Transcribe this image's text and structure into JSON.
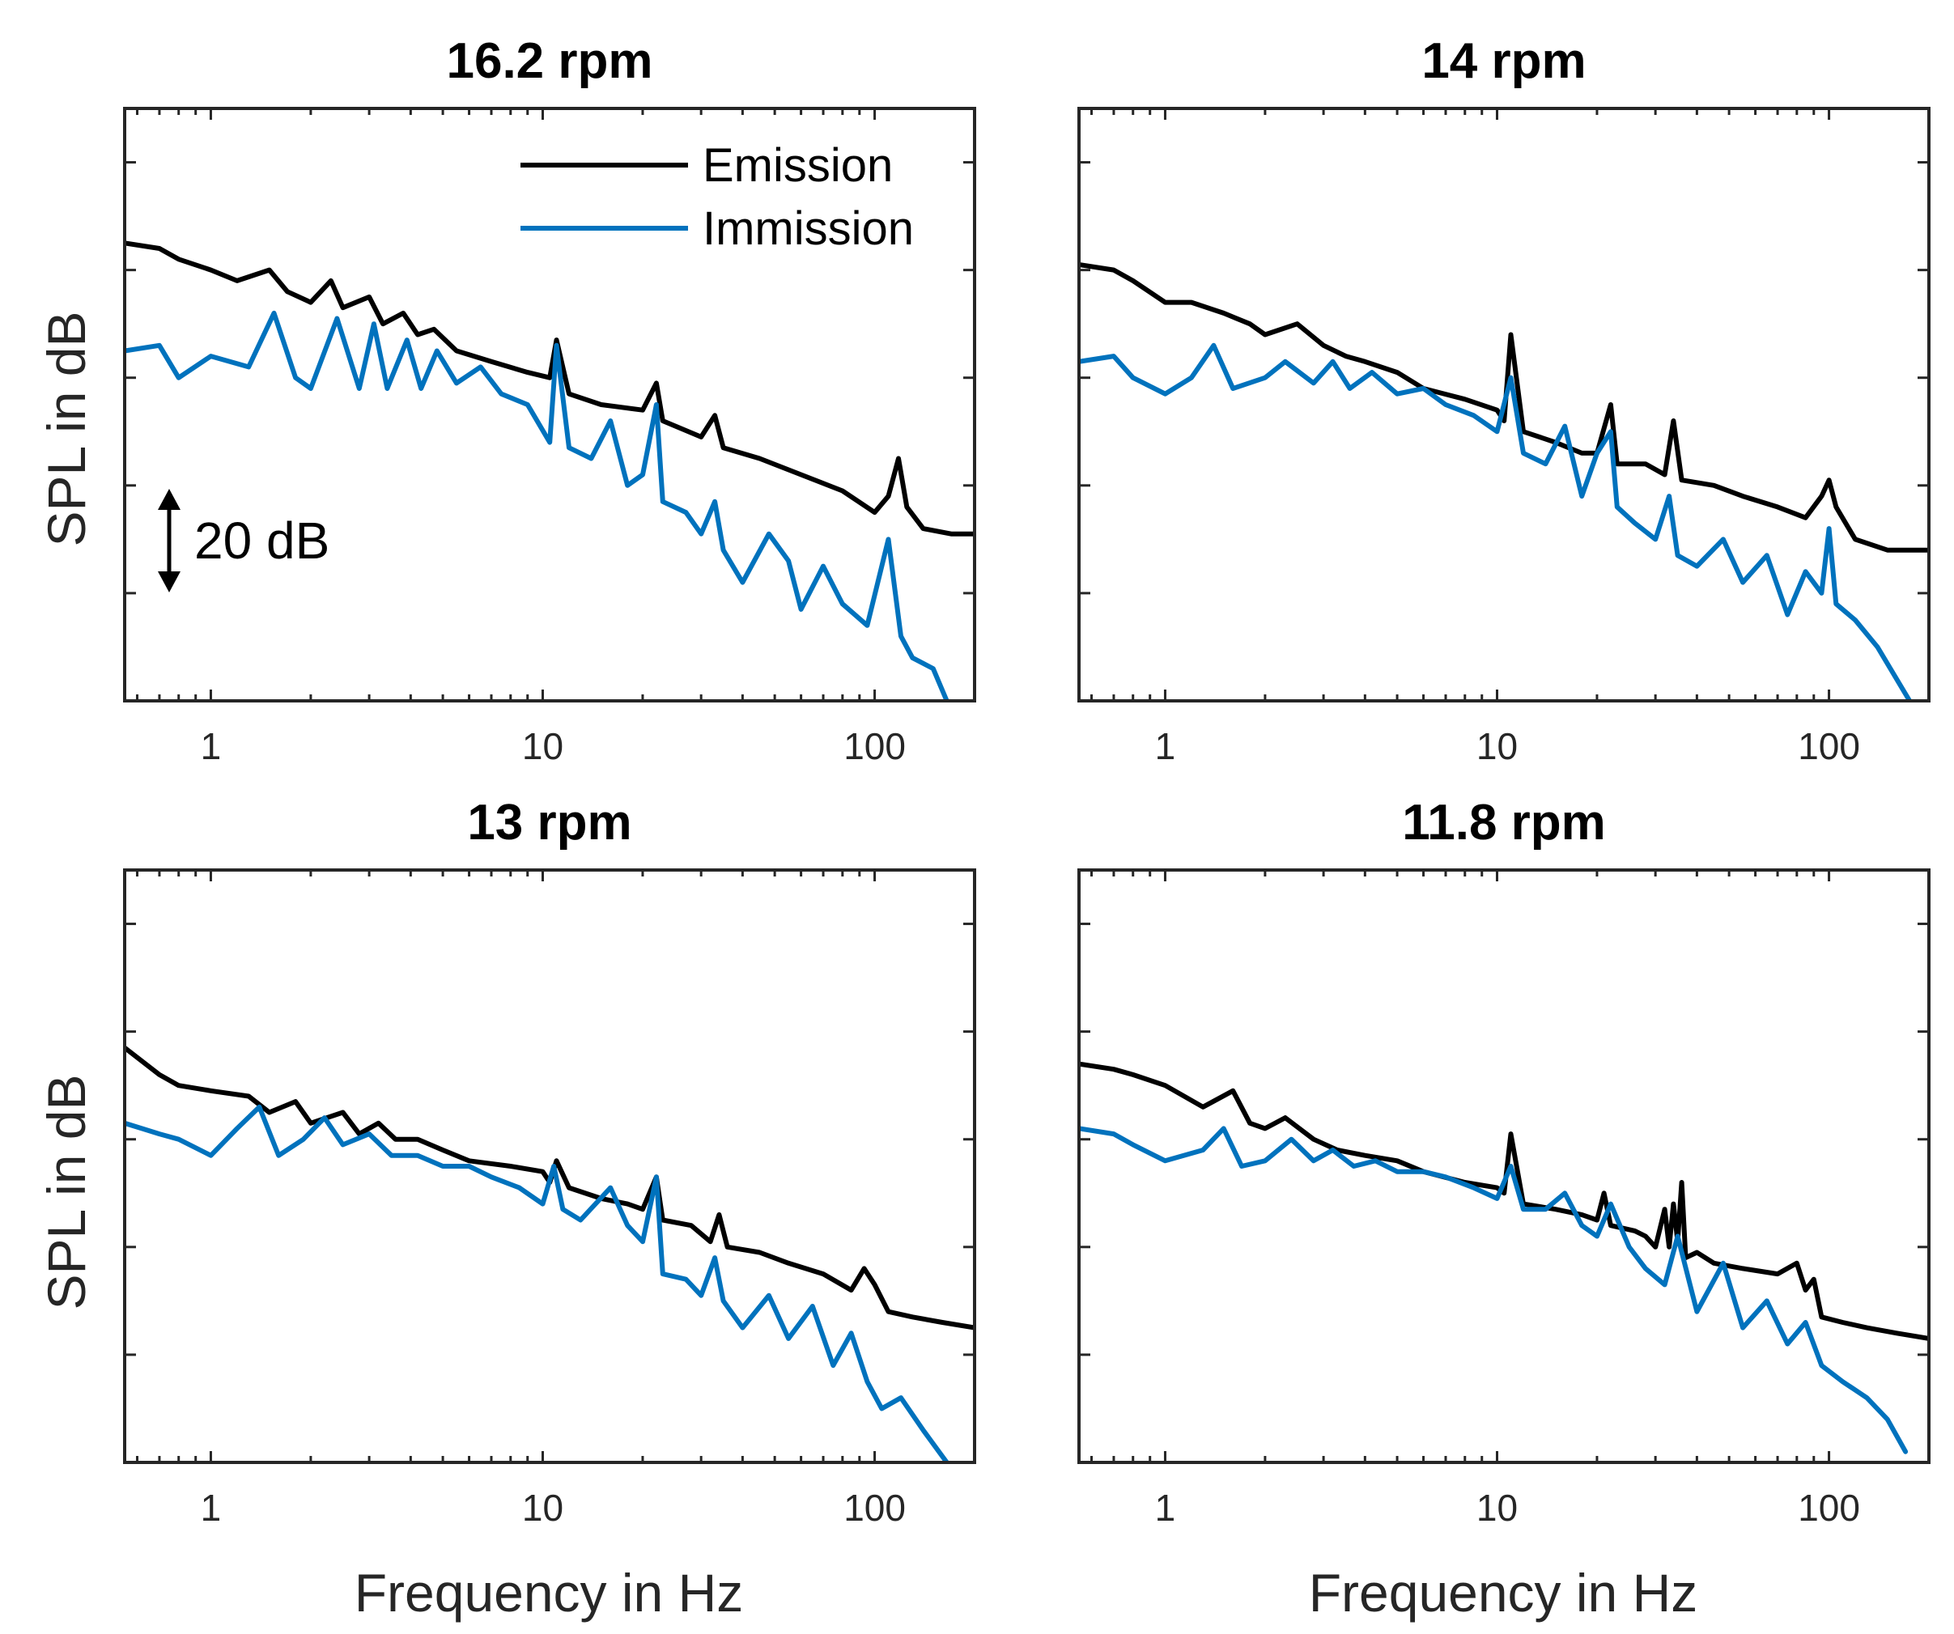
{
  "figure": {
    "ylabel": "SPL in dB",
    "xlabel": "Frequency in Hz",
    "legend": [
      {
        "label": "Emission",
        "color": "#000000"
      },
      {
        "label": "Immission",
        "color": "#0072BD"
      }
    ],
    "scale_bar_label": "20 dB"
  },
  "chart_data": [
    {
      "type": "line",
      "title": "16.2 rpm",
      "xscale": "log",
      "xlim": [
        0.55,
        200
      ],
      "ylim": [
        0,
        110
      ],
      "xticks": [
        1,
        10,
        100
      ],
      "xtick_labels": [
        "1",
        "10",
        "100"
      ],
      "series": [
        {
          "name": "Emission",
          "color": "#000000",
          "x": [
            0.55,
            0.7,
            0.8,
            1.0,
            1.2,
            1.5,
            1.7,
            2.0,
            2.3,
            2.5,
            3.0,
            3.3,
            3.8,
            4.2,
            4.7,
            5.5,
            7,
            9,
            10.5,
            11,
            12,
            15,
            20,
            22,
            23,
            30,
            33,
            35,
            45,
            60,
            80,
            100,
            110,
            118,
            125,
            140,
            170,
            200
          ],
          "y": [
            85,
            84,
            82,
            80,
            78,
            80,
            76,
            74,
            78,
            73,
            75,
            70,
            72,
            68,
            69,
            65,
            63,
            61,
            60,
            67,
            57,
            55,
            54,
            59,
            52,
            49,
            53,
            47,
            45,
            42,
            39,
            35,
            38,
            45,
            36,
            32,
            31,
            31
          ]
        },
        {
          "name": "Immission",
          "color": "#0072BD",
          "x": [
            0.55,
            0.7,
            0.8,
            1.0,
            1.3,
            1.55,
            1.8,
            2.0,
            2.4,
            2.8,
            3.1,
            3.4,
            3.9,
            4.3,
            4.8,
            5.5,
            6.5,
            7.5,
            9,
            10.5,
            11,
            12,
            14,
            16,
            18,
            20,
            22,
            23,
            27,
            30,
            33,
            35,
            40,
            48,
            55,
            60,
            70,
            80,
            95,
            110,
            120,
            130,
            150,
            165
          ],
          "y": [
            65,
            66,
            60,
            64,
            62,
            72,
            60,
            58,
            71,
            58,
            70,
            58,
            67,
            58,
            65,
            59,
            62,
            57,
            55,
            48,
            66,
            47,
            45,
            52,
            40,
            42,
            55,
            37,
            35,
            31,
            37,
            28,
            22,
            31,
            26,
            17,
            25,
            18,
            14,
            30,
            12,
            8,
            6,
            0
          ]
        }
      ]
    },
    {
      "type": "line",
      "title": "14 rpm",
      "xscale": "log",
      "xlim": [
        0.55,
        200
      ],
      "ylim": [
        0,
        110
      ],
      "xticks": [
        1,
        10,
        100
      ],
      "xtick_labels": [
        "1",
        "10",
        "100"
      ],
      "series": [
        {
          "name": "Emission",
          "color": "#000000",
          "x": [
            0.55,
            0.7,
            0.8,
            1.0,
            1.2,
            1.5,
            1.8,
            2.0,
            2.5,
            3.0,
            3.5,
            4,
            5,
            6,
            8,
            10,
            10.5,
            11,
            12,
            15,
            18,
            20,
            22,
            23,
            28,
            32,
            34,
            36,
            45,
            55,
            70,
            85,
            95,
            100,
            105,
            120,
            150,
            200
          ],
          "y": [
            81,
            80,
            78,
            74,
            74,
            72,
            70,
            68,
            70,
            66,
            64,
            63,
            61,
            58,
            56,
            54,
            52,
            68,
            50,
            48,
            46,
            46,
            55,
            44,
            44,
            42,
            52,
            41,
            40,
            38,
            36,
            34,
            38,
            41,
            36,
            30,
            28,
            28
          ]
        },
        {
          "name": "Immission",
          "color": "#0072BD",
          "x": [
            0.55,
            0.7,
            0.8,
            1.0,
            1.2,
            1.4,
            1.6,
            2.0,
            2.3,
            2.8,
            3.2,
            3.6,
            4.2,
            5,
            6,
            7,
            8.5,
            10,
            11,
            12,
            14,
            16,
            18,
            20,
            22,
            23,
            26,
            30,
            33,
            35,
            40,
            48,
            55,
            65,
            75,
            85,
            95,
            100,
            105,
            120,
            140,
            175
          ],
          "y": [
            63,
            64,
            60,
            57,
            60,
            66,
            58,
            60,
            63,
            59,
            63,
            58,
            61,
            57,
            58,
            55,
            53,
            50,
            60,
            46,
            44,
            51,
            38,
            46,
            50,
            36,
            33,
            30,
            38,
            27,
            25,
            30,
            22,
            27,
            16,
            24,
            20,
            32,
            18,
            15,
            10,
            0
          ]
        }
      ]
    },
    {
      "type": "line",
      "title": "13 rpm",
      "xscale": "log",
      "xlim": [
        0.55,
        200
      ],
      "ylim": [
        0,
        110
      ],
      "xticks": [
        1,
        10,
        100
      ],
      "xtick_labels": [
        "1",
        "10",
        "100"
      ],
      "series": [
        {
          "name": "Emission",
          "color": "#000000",
          "x": [
            0.55,
            0.7,
            0.8,
            1.0,
            1.3,
            1.5,
            1.8,
            2.0,
            2.5,
            2.8,
            3.2,
            3.6,
            4.2,
            5,
            6,
            8,
            10,
            10.5,
            11,
            12,
            15,
            18,
            20,
            22,
            23,
            28,
            32,
            34,
            36,
            45,
            55,
            70,
            85,
            93,
            100,
            110,
            130,
            160,
            200
          ],
          "y": [
            77,
            72,
            70,
            69,
            68,
            65,
            67,
            63,
            65,
            61,
            63,
            60,
            60,
            58,
            56,
            55,
            54,
            52,
            56,
            51,
            49,
            48,
            47,
            53,
            45,
            44,
            41,
            46,
            40,
            39,
            37,
            35,
            32,
            36,
            33,
            28,
            27,
            26,
            25
          ]
        },
        {
          "name": "Immission",
          "color": "#0072BD",
          "x": [
            0.55,
            0.7,
            0.8,
            1.0,
            1.2,
            1.4,
            1.6,
            1.9,
            2.2,
            2.5,
            3.0,
            3.5,
            4.2,
            5,
            6,
            7,
            8.5,
            10,
            10.8,
            11.5,
            13,
            16,
            18,
            20,
            22,
            23,
            27,
            30,
            33,
            35,
            40,
            48,
            55,
            65,
            75,
            85,
            95,
            105,
            120,
            140,
            165
          ],
          "y": [
            63,
            61,
            60,
            57,
            62,
            66,
            57,
            60,
            64,
            59,
            61,
            57,
            57,
            55,
            55,
            53,
            51,
            48,
            55,
            47,
            45,
            51,
            44,
            41,
            53,
            35,
            34,
            31,
            38,
            30,
            25,
            31,
            23,
            29,
            18,
            24,
            15,
            10,
            12,
            6,
            0
          ]
        }
      ]
    },
    {
      "type": "line",
      "title": "11.8 rpm",
      "xscale": "log",
      "xlim": [
        0.55,
        200
      ],
      "ylim": [
        0,
        110
      ],
      "xticks": [
        1,
        10,
        100
      ],
      "xtick_labels": [
        "1",
        "10",
        "100"
      ],
      "series": [
        {
          "name": "Emission",
          "color": "#000000",
          "x": [
            0.55,
            0.7,
            0.8,
            1.0,
            1.3,
            1.6,
            1.8,
            2.0,
            2.3,
            2.8,
            3.3,
            4,
            5,
            6,
            8,
            10,
            10.5,
            11,
            12,
            15,
            18,
            20,
            21,
            22,
            26,
            28,
            30,
            32,
            33,
            34,
            35,
            36,
            37,
            40,
            45,
            55,
            70,
            80,
            85,
            90,
            95,
            110,
            130,
            160,
            200
          ],
          "y": [
            74,
            73,
            72,
            70,
            66,
            69,
            63,
            62,
            64,
            60,
            58,
            57,
            56,
            54,
            52,
            51,
            50,
            61,
            48,
            47,
            46,
            45,
            50,
            44,
            43,
            42,
            40,
            47,
            40,
            48,
            41,
            52,
            38,
            39,
            37,
            36,
            35,
            37,
            32,
            34,
            27,
            26,
            25,
            24,
            23
          ]
        },
        {
          "name": "Immission",
          "color": "#0072BD",
          "x": [
            0.55,
            0.7,
            0.8,
            1.0,
            1.3,
            1.5,
            1.7,
            2.0,
            2.4,
            2.8,
            3.2,
            3.7,
            4.3,
            5,
            6,
            7,
            8.5,
            10,
            11,
            12,
            14,
            16,
            18,
            20,
            22,
            25,
            28,
            32,
            35,
            40,
            48,
            55,
            65,
            75,
            85,
            95,
            110,
            130,
            150,
            170
          ],
          "y": [
            62,
            61,
            59,
            56,
            58,
            62,
            55,
            56,
            60,
            56,
            58,
            55,
            56,
            54,
            54,
            53,
            51,
            49,
            55,
            47,
            47,
            50,
            44,
            42,
            48,
            40,
            36,
            33,
            42,
            28,
            37,
            25,
            30,
            22,
            26,
            18,
            15,
            12,
            8,
            2
          ]
        }
      ]
    }
  ]
}
